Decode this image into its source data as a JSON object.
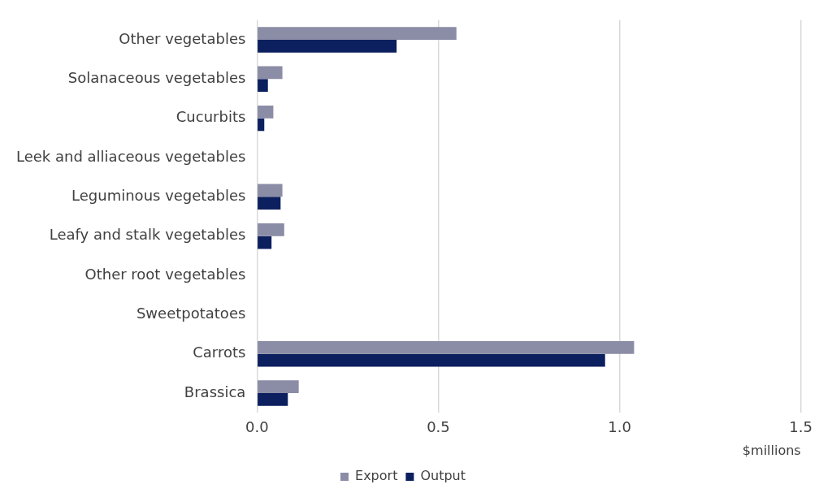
{
  "chart_data": {
    "type": "bar",
    "orientation": "horizontal",
    "xlabel": "$millions",
    "categories": [
      "Other vegetables",
      "Solanaceous vegetables",
      "Cucurbits",
      "Leek and alliaceous vegetables",
      "Leguminous vegetables",
      "Leafy and stalk vegetables",
      "Other root vegetables",
      "Sweetpotatoes",
      "Carrots",
      "Brassica"
    ],
    "series": [
      {
        "name": "Export",
        "color": "#8b8ca6",
        "values": [
          0.55,
          0.07,
          0.045,
          null,
          0.07,
          0.075,
          null,
          null,
          1.04,
          0.115
        ]
      },
      {
        "name": "Output",
        "color": "#0c1f5e",
        "values": [
          0.385,
          0.03,
          0.02,
          null,
          0.065,
          0.04,
          null,
          null,
          0.96,
          0.085
        ]
      }
    ],
    "xlim": [
      0,
      1.5
    ],
    "xticks": [
      {
        "value": 0,
        "label": "0.0"
      },
      {
        "value": 0.5,
        "label": "0.5"
      },
      {
        "value": 1,
        "label": "1.0"
      },
      {
        "value": 1.5,
        "label": "1.5"
      }
    ],
    "grid": "x",
    "legend": "bottom"
  }
}
